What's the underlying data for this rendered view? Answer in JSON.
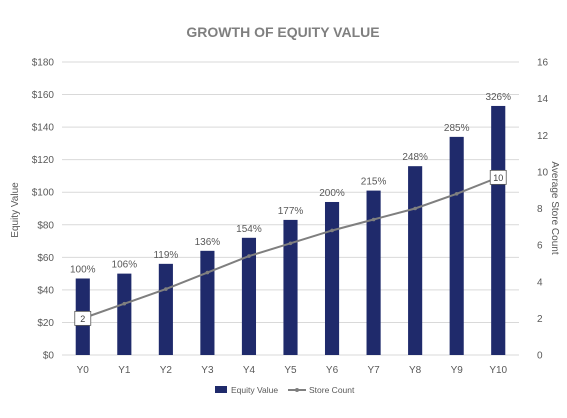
{
  "chart_data": {
    "type": "bar",
    "title": "GROWTH OF EQUITY VALUE",
    "ylabel": "Equity Value",
    "y2label": "Average Store Count",
    "categories": [
      "Y0",
      "Y1",
      "Y2",
      "Y3",
      "Y4",
      "Y5",
      "Y6",
      "Y7",
      "Y8",
      "Y9",
      "Y10"
    ],
    "ylim": [
      0,
      180
    ],
    "y2lim": [
      0,
      16
    ],
    "yticks": [
      "$0",
      "$20",
      "$40",
      "$60",
      "$80",
      "$100",
      "$120",
      "$140",
      "$160",
      "$180"
    ],
    "y2ticks": [
      "0",
      "2",
      "4",
      "6",
      "8",
      "10",
      "12",
      "14",
      "16"
    ],
    "grid": true,
    "legend_position": "bottom",
    "series": [
      {
        "name": "Equity Value",
        "type": "bar",
        "axis": "left",
        "color": "#1f2a6b",
        "values": [
          47,
          50,
          56,
          64,
          72,
          83,
          94,
          101,
          116,
          134,
          153
        ],
        "labels": [
          "100%",
          "106%",
          "119%",
          "136%",
          "154%",
          "177%",
          "200%",
          "215%",
          "248%",
          "285%",
          "326%"
        ]
      },
      {
        "name": "Store Count",
        "type": "line",
        "axis": "right",
        "color": "#7f7f7f",
        "values": [
          2,
          2.8,
          3.6,
          4.5,
          5.4,
          6.1,
          6.8,
          7.4,
          8.0,
          8.8,
          9.7
        ],
        "endpoint_labels": [
          "2",
          "10"
        ]
      }
    ]
  }
}
